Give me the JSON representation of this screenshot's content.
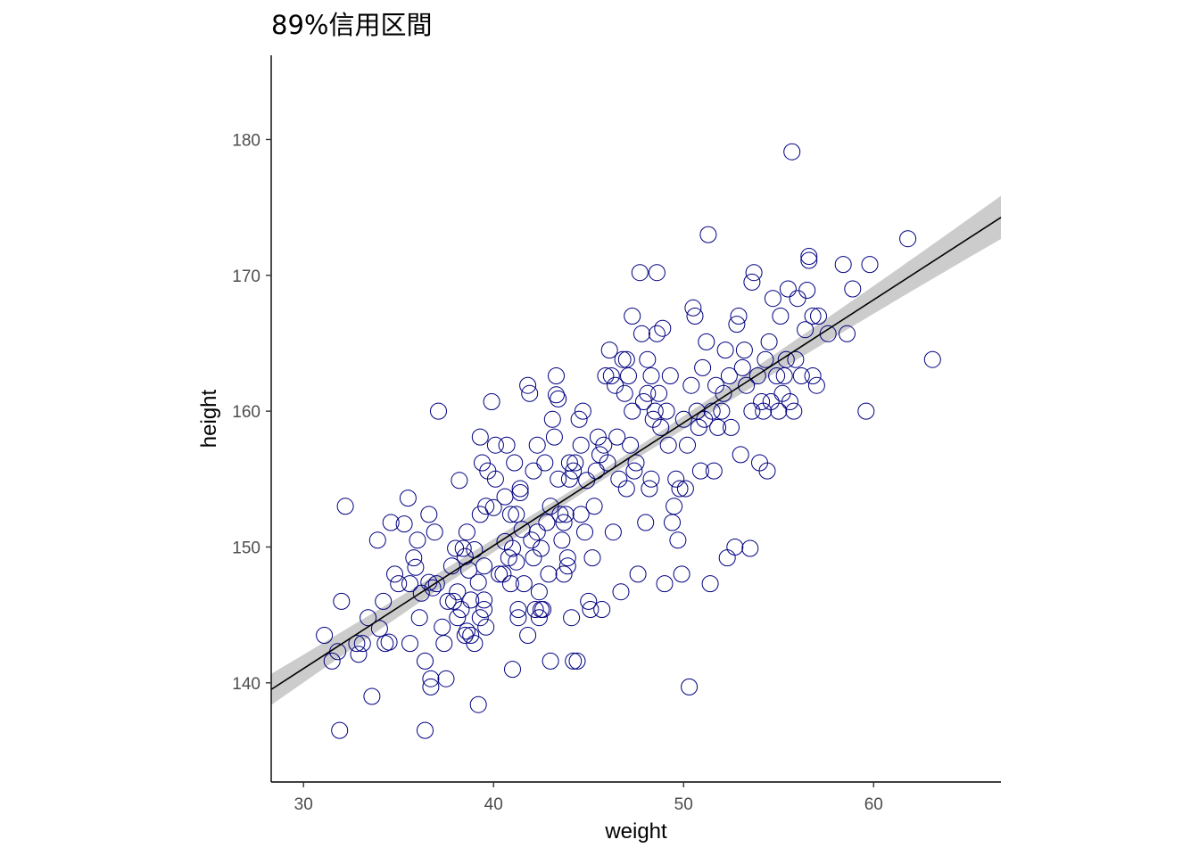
{
  "chart_data": {
    "type": "scatter",
    "title": "89%信用区間",
    "xlabel": "weight",
    "ylabel": "height",
    "xlim": [
      28.3,
      66.7
    ],
    "ylim": [
      132.7,
      186.2
    ],
    "x_ticks": [
      30,
      40,
      50,
      60
    ],
    "y_ticks": [
      140,
      150,
      160,
      170,
      180
    ],
    "grid": false,
    "legend": "none",
    "point_color": "#000080",
    "line_color": "#000000",
    "band_color": "#cccccc",
    "regression": {
      "intercept": 113.9,
      "slope": 0.905
    },
    "interval": {
      "level": "89%",
      "halfwidth_at_mean": 0.35,
      "mean_x": 45.0
    },
    "points": [
      [
        31.1,
        143.5
      ],
      [
        31.5,
        141.6
      ],
      [
        31.8,
        142.3
      ],
      [
        31.9,
        136.5
      ],
      [
        32.0,
        146.0
      ],
      [
        32.2,
        153.0
      ],
      [
        32.8,
        142.9
      ],
      [
        32.9,
        142.1
      ],
      [
        33.1,
        142.9
      ],
      [
        33.4,
        144.8
      ],
      [
        33.6,
        139.0
      ],
      [
        33.9,
        150.5
      ],
      [
        34.0,
        144.0
      ],
      [
        34.2,
        146.0
      ],
      [
        34.3,
        142.9
      ],
      [
        34.5,
        143.0
      ],
      [
        34.6,
        151.8
      ],
      [
        34.8,
        148.0
      ],
      [
        35.0,
        147.3
      ],
      [
        35.3,
        151.7
      ],
      [
        35.5,
        153.6
      ],
      [
        35.6,
        147.3
      ],
      [
        35.6,
        142.9
      ],
      [
        35.8,
        149.2
      ],
      [
        35.9,
        148.5
      ],
      [
        36.0,
        150.5
      ],
      [
        36.1,
        144.8
      ],
      [
        36.2,
        146.6
      ],
      [
        36.4,
        136.5
      ],
      [
        36.4,
        141.6
      ],
      [
        36.6,
        147.4
      ],
      [
        36.6,
        152.4
      ],
      [
        36.7,
        139.7
      ],
      [
        36.7,
        140.3
      ],
      [
        36.8,
        147.0
      ],
      [
        36.9,
        151.1
      ],
      [
        37.0,
        147.3
      ],
      [
        37.1,
        160.0
      ],
      [
        37.3,
        144.1
      ],
      [
        37.4,
        142.9
      ],
      [
        37.5,
        140.3
      ],
      [
        37.6,
        146.0
      ],
      [
        37.8,
        148.6
      ],
      [
        37.9,
        146.0
      ],
      [
        38.0,
        149.9
      ],
      [
        38.1,
        144.8
      ],
      [
        38.1,
        146.7
      ],
      [
        38.2,
        154.9
      ],
      [
        38.3,
        145.4
      ],
      [
        38.4,
        149.9
      ],
      [
        38.5,
        143.5
      ],
      [
        38.5,
        149.3
      ],
      [
        38.6,
        143.8
      ],
      [
        38.6,
        151.1
      ],
      [
        38.7,
        148.3
      ],
      [
        38.8,
        146.1
      ],
      [
        38.8,
        143.5
      ],
      [
        39.0,
        142.9
      ],
      [
        39.0,
        149.8
      ],
      [
        39.2,
        138.4
      ],
      [
        39.2,
        147.4
      ],
      [
        39.3,
        144.8
      ],
      [
        39.3,
        158.1
      ],
      [
        39.3,
        152.4
      ],
      [
        39.4,
        156.2
      ],
      [
        39.5,
        148.6
      ],
      [
        39.5,
        145.4
      ],
      [
        39.5,
        146.1
      ],
      [
        39.6,
        144.1
      ],
      [
        39.6,
        153.0
      ],
      [
        39.7,
        155.6
      ],
      [
        39.9,
        160.7
      ],
      [
        40.0,
        152.9
      ],
      [
        40.1,
        155.0
      ],
      [
        40.1,
        157.5
      ],
      [
        40.3,
        148.0
      ],
      [
        40.5,
        148.0
      ],
      [
        40.6,
        150.4
      ],
      [
        40.6,
        153.7
      ],
      [
        40.7,
        157.5
      ],
      [
        40.8,
        149.2
      ],
      [
        40.9,
        152.4
      ],
      [
        40.9,
        147.3
      ],
      [
        41.0,
        141.0
      ],
      [
        41.0,
        149.9
      ],
      [
        41.1,
        156.2
      ],
      [
        41.2,
        152.4
      ],
      [
        41.2,
        148.9
      ],
      [
        41.3,
        144.8
      ],
      [
        41.3,
        145.4
      ],
      [
        41.4,
        154.3
      ],
      [
        41.4,
        154.0
      ],
      [
        41.5,
        151.3
      ],
      [
        41.6,
        147.3
      ],
      [
        41.8,
        143.5
      ],
      [
        41.8,
        161.9
      ],
      [
        41.9,
        161.3
      ],
      [
        42.0,
        150.5
      ],
      [
        42.1,
        155.6
      ],
      [
        42.1,
        149.2
      ],
      [
        42.2,
        145.4
      ],
      [
        42.3,
        157.5
      ],
      [
        42.3,
        151.1
      ],
      [
        42.4,
        146.7
      ],
      [
        42.4,
        144.8
      ],
      [
        42.5,
        149.9
      ],
      [
        42.5,
        145.4
      ],
      [
        42.6,
        145.4
      ],
      [
        42.7,
        156.2
      ],
      [
        42.8,
        151.8
      ],
      [
        42.9,
        148.0
      ],
      [
        43.0,
        141.6
      ],
      [
        43.0,
        153.0
      ],
      [
        43.1,
        159.4
      ],
      [
        43.2,
        158.1
      ],
      [
        43.3,
        162.6
      ],
      [
        43.3,
        161.2
      ],
      [
        43.4,
        160.9
      ],
      [
        43.4,
        155.0
      ],
      [
        43.5,
        152.4
      ],
      [
        43.6,
        150.5
      ],
      [
        43.7,
        148.0
      ],
      [
        43.7,
        151.8
      ],
      [
        43.8,
        152.4
      ],
      [
        43.9,
        149.2
      ],
      [
        43.9,
        148.6
      ],
      [
        44.0,
        155.0
      ],
      [
        44.0,
        156.2
      ],
      [
        44.1,
        144.8
      ],
      [
        44.2,
        141.6
      ],
      [
        44.2,
        155.6
      ],
      [
        44.3,
        156.2
      ],
      [
        44.4,
        141.6
      ],
      [
        44.5,
        159.4
      ],
      [
        44.6,
        157.5
      ],
      [
        44.6,
        152.4
      ],
      [
        44.7,
        160.0
      ],
      [
        44.8,
        151.1
      ],
      [
        44.9,
        154.9
      ],
      [
        45.0,
        146.0
      ],
      [
        45.1,
        145.4
      ],
      [
        45.2,
        149.2
      ],
      [
        45.3,
        153.0
      ],
      [
        45.4,
        155.6
      ],
      [
        45.5,
        158.1
      ],
      [
        45.6,
        156.8
      ],
      [
        45.7,
        145.4
      ],
      [
        45.8,
        157.5
      ],
      [
        45.9,
        162.6
      ],
      [
        46.0,
        156.2
      ],
      [
        46.1,
        164.5
      ],
      [
        46.2,
        162.6
      ],
      [
        46.3,
        151.1
      ],
      [
        46.4,
        161.9
      ],
      [
        46.5,
        158.1
      ],
      [
        46.6,
        155.0
      ],
      [
        46.7,
        146.7
      ],
      [
        46.8,
        163.8
      ],
      [
        46.9,
        161.3
      ],
      [
        47.0,
        154.3
      ],
      [
        47.0,
        163.8
      ],
      [
        47.1,
        162.6
      ],
      [
        47.2,
        157.5
      ],
      [
        47.3,
        167.0
      ],
      [
        47.3,
        160.0
      ],
      [
        47.4,
        155.6
      ],
      [
        47.5,
        156.2
      ],
      [
        47.6,
        148.0
      ],
      [
        47.7,
        170.2
      ],
      [
        47.8,
        165.7
      ],
      [
        47.9,
        160.7
      ],
      [
        48.0,
        151.8
      ],
      [
        48.1,
        163.8
      ],
      [
        48.1,
        161.3
      ],
      [
        48.2,
        154.3
      ],
      [
        48.3,
        155.0
      ],
      [
        48.3,
        162.6
      ],
      [
        48.4,
        159.4
      ],
      [
        48.5,
        160.0
      ],
      [
        48.6,
        165.7
      ],
      [
        48.6,
        170.2
      ],
      [
        48.7,
        161.3
      ],
      [
        48.8,
        158.8
      ],
      [
        48.9,
        166.1
      ],
      [
        49.0,
        147.3
      ],
      [
        49.1,
        160.0
      ],
      [
        49.2,
        157.5
      ],
      [
        49.3,
        162.6
      ],
      [
        49.4,
        151.8
      ],
      [
        49.5,
        153.0
      ],
      [
        49.6,
        155.0
      ],
      [
        49.7,
        150.5
      ],
      [
        49.8,
        154.3
      ],
      [
        49.9,
        148.0
      ],
      [
        50.0,
        159.4
      ],
      [
        50.1,
        154.3
      ],
      [
        50.2,
        157.5
      ],
      [
        50.3,
        139.7
      ],
      [
        50.4,
        161.9
      ],
      [
        50.5,
        167.6
      ],
      [
        50.6,
        167.0
      ],
      [
        50.7,
        160.0
      ],
      [
        50.8,
        158.8
      ],
      [
        50.9,
        155.6
      ],
      [
        51.0,
        163.2
      ],
      [
        51.1,
        159.4
      ],
      [
        51.2,
        165.1
      ],
      [
        51.3,
        173.0
      ],
      [
        51.4,
        147.3
      ],
      [
        51.5,
        160.0
      ],
      [
        51.6,
        155.6
      ],
      [
        51.7,
        161.9
      ],
      [
        51.8,
        158.8
      ],
      [
        52.0,
        160.0
      ],
      [
        52.1,
        161.3
      ],
      [
        52.2,
        164.5
      ],
      [
        52.3,
        149.2
      ],
      [
        52.4,
        162.6
      ],
      [
        52.5,
        158.8
      ],
      [
        52.7,
        150.0
      ],
      [
        52.8,
        166.4
      ],
      [
        52.9,
        167.0
      ],
      [
        53.0,
        156.8
      ],
      [
        53.1,
        163.2
      ],
      [
        53.2,
        164.5
      ],
      [
        53.3,
        161.9
      ],
      [
        53.5,
        149.9
      ],
      [
        53.6,
        160.0
      ],
      [
        53.6,
        169.5
      ],
      [
        53.7,
        170.2
      ],
      [
        53.9,
        162.6
      ],
      [
        54.0,
        156.2
      ],
      [
        54.1,
        160.7
      ],
      [
        54.2,
        160.0
      ],
      [
        54.3,
        163.8
      ],
      [
        54.4,
        155.6
      ],
      [
        54.5,
        165.1
      ],
      [
        54.6,
        160.7
      ],
      [
        54.7,
        168.3
      ],
      [
        54.9,
        162.6
      ],
      [
        55.0,
        160.0
      ],
      [
        55.1,
        167.0
      ],
      [
        55.2,
        161.3
      ],
      [
        55.3,
        162.6
      ],
      [
        55.4,
        163.8
      ],
      [
        55.5,
        169.0
      ],
      [
        55.6,
        160.7
      ],
      [
        55.7,
        179.1
      ],
      [
        55.8,
        160.0
      ],
      [
        55.9,
        163.8
      ],
      [
        56.0,
        168.3
      ],
      [
        56.2,
        162.6
      ],
      [
        56.4,
        166.0
      ],
      [
        56.5,
        168.9
      ],
      [
        56.6,
        171.4
      ],
      [
        56.6,
        171.1
      ],
      [
        56.8,
        162.6
      ],
      [
        56.8,
        167.0
      ],
      [
        57.0,
        161.9
      ],
      [
        57.1,
        167.0
      ],
      [
        57.6,
        165.7
      ],
      [
        58.4,
        170.8
      ],
      [
        58.6,
        165.7
      ],
      [
        58.9,
        169.0
      ],
      [
        59.6,
        160.0
      ],
      [
        59.8,
        170.8
      ],
      [
        61.8,
        172.7
      ],
      [
        63.1,
        163.8
      ]
    ]
  }
}
